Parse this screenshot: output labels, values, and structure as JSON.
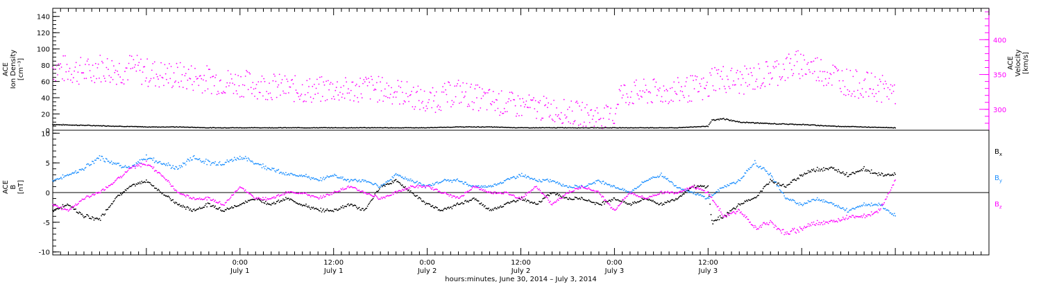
{
  "chart_data": [
    {
      "type": "scatter",
      "panel": "top",
      "left_axis": {
        "label_lines": [
          "ACE",
          "Ion Density",
          "[cm⁻³]"
        ],
        "ylim": [
          0,
          150
        ],
        "ticks": [
          0,
          20,
          40,
          60,
          80,
          100,
          120,
          140
        ],
        "tick_labels": [
          "0",
          "20",
          "40",
          "60",
          "80",
          "100",
          "120",
          "140"
        ]
      },
      "right_axis": {
        "label_lines": [
          "ACE",
          "Velocity",
          "[km/s]"
        ],
        "ylim": [
          270,
          445
        ],
        "ticks": [
          300,
          350,
          400
        ],
        "tick_labels": [
          "300",
          "350",
          "400"
        ],
        "color": "#ff00ff"
      },
      "series": [
        {
          "axis": "right",
          "color": "#ff00ff",
          "points": [
            [
              -24.0,
              360
            ],
            [
              -23,
              358
            ],
            [
              -21,
              356
            ],
            [
              -19,
              353
            ],
            [
              -18.5,
              362
            ],
            [
              -17,
              358
            ],
            [
              -15,
              356
            ],
            [
              -14,
              360
            ],
            [
              -12,
              353
            ],
            [
              -10,
              350
            ],
            [
              -8,
              348
            ],
            [
              -6,
              346
            ],
            [
              -4,
              343
            ],
            [
              -2,
              340
            ],
            [
              0,
              338
            ],
            [
              2,
              335
            ],
            [
              4,
              333
            ],
            [
              6,
              330
            ],
            [
              8,
              328
            ],
            [
              10,
              327
            ],
            [
              12,
              330
            ],
            [
              14,
              326
            ],
            [
              16,
              332
            ],
            [
              18,
              328
            ],
            [
              20,
              326
            ],
            [
              22,
              320
            ],
            [
              24,
              310
            ],
            [
              26,
              318
            ],
            [
              28,
              325
            ],
            [
              30,
              318
            ],
            [
              32,
              312
            ],
            [
              34,
              308
            ],
            [
              36,
              305
            ],
            [
              38,
              302
            ],
            [
              40,
              300
            ],
            [
              42,
              296
            ],
            [
              44,
              293
            ],
            [
              46,
              290
            ],
            [
              48,
              288
            ],
            [
              48.5,
              322
            ],
            [
              52,
              324
            ],
            [
              56,
              326
            ],
            [
              58,
              330
            ],
            [
              60,
              328
            ],
            [
              60.5,
              347
            ],
            [
              64,
              340
            ],
            [
              66,
              345
            ],
            [
              68,
              352
            ],
            [
              70,
              360
            ],
            [
              72,
              365
            ],
            [
              74,
              358
            ],
            [
              76,
              350
            ],
            [
              78,
              338
            ],
            [
              80,
              335
            ],
            [
              82,
              330
            ],
            [
              84,
              325
            ]
          ]
        },
        {
          "axis": "left",
          "color": "#000000",
          "points": [
            [
              -24.0,
              7
            ],
            [
              -20,
              6
            ],
            [
              -16,
              5
            ],
            [
              -12,
              4
            ],
            [
              -8,
              4
            ],
            [
              -4,
              3
            ],
            [
              0,
              3
            ],
            [
              4,
              3
            ],
            [
              8,
              3
            ],
            [
              12,
              3
            ],
            [
              16,
              3
            ],
            [
              20,
              3
            ],
            [
              24,
              3
            ],
            [
              28,
              4
            ],
            [
              32,
              4
            ],
            [
              36,
              3
            ],
            [
              40,
              3
            ],
            [
              44,
              3
            ],
            [
              48,
              3
            ],
            [
              52,
              3
            ],
            [
              56,
              3
            ],
            [
              60,
              5
            ],
            [
              60.5,
              12
            ],
            [
              62,
              14
            ],
            [
              64,
              10
            ],
            [
              66,
              9
            ],
            [
              68,
              8
            ],
            [
              72,
              7
            ],
            [
              76,
              5
            ],
            [
              80,
              4
            ],
            [
              84,
              3
            ]
          ]
        }
      ]
    },
    {
      "type": "scatter",
      "panel": "bottom",
      "left_axis": {
        "label_lines": [
          "ACE",
          "B",
          "[nT]"
        ],
        "ylim": [
          -10.5,
          10.5
        ],
        "ticks": [
          -10,
          -5,
          0,
          5,
          10
        ],
        "tick_labels": [
          "-10",
          "-5",
          "0",
          "5",
          "10"
        ]
      },
      "legend_position": "right",
      "series": [
        {
          "name": "B",
          "subscript": "x",
          "color": "#000000",
          "points": [
            [
              -24.0,
              -3
            ],
            [
              -22,
              -2
            ],
            [
              -20,
              -4
            ],
            [
              -18,
              -4.5
            ],
            [
              -16,
              -1
            ],
            [
              -14,
              1
            ],
            [
              -12,
              2
            ],
            [
              -10,
              0
            ],
            [
              -8,
              -2
            ],
            [
              -6,
              -3
            ],
            [
              -4,
              -2
            ],
            [
              -2,
              -3
            ],
            [
              0,
              -2
            ],
            [
              2,
              -1
            ],
            [
              4,
              -2
            ],
            [
              6,
              -1
            ],
            [
              8,
              -2
            ],
            [
              10,
              -3
            ],
            [
              12,
              -3
            ],
            [
              14,
              -2
            ],
            [
              16,
              -3
            ],
            [
              18,
              1
            ],
            [
              20,
              2
            ],
            [
              22,
              0
            ],
            [
              24,
              -2
            ],
            [
              26,
              -3
            ],
            [
              28,
              -2
            ],
            [
              30,
              -1
            ],
            [
              32,
              -3
            ],
            [
              34,
              -2
            ],
            [
              36,
              -1
            ],
            [
              38,
              -2
            ],
            [
              40,
              0
            ],
            [
              42,
              -1
            ],
            [
              44,
              -1
            ],
            [
              46,
              -2
            ],
            [
              48,
              -1
            ],
            [
              50,
              -2
            ],
            [
              52,
              -1
            ],
            [
              54,
              -2
            ],
            [
              56,
              -1
            ],
            [
              58,
              1
            ],
            [
              60,
              1
            ],
            [
              60.5,
              -5
            ],
            [
              62,
              -4
            ],
            [
              64,
              -2
            ],
            [
              66,
              -1
            ],
            [
              68,
              2
            ],
            [
              70,
              1
            ],
            [
              72,
              3
            ],
            [
              74,
              4
            ],
            [
              76,
              4
            ],
            [
              78,
              3
            ],
            [
              80,
              4
            ],
            [
              82,
              3
            ],
            [
              84,
              3
            ]
          ]
        },
        {
          "name": "B",
          "subscript": "y",
          "color": "#1e90ff",
          "points": [
            [
              -24.0,
              2
            ],
            [
              -22,
              3
            ],
            [
              -20,
              4
            ],
            [
              -18,
              6
            ],
            [
              -16,
              5
            ],
            [
              -14,
              4
            ],
            [
              -12,
              6
            ],
            [
              -10,
              5
            ],
            [
              -8,
              4
            ],
            [
              -6,
              6
            ],
            [
              -4,
              5
            ],
            [
              -2,
              5
            ],
            [
              0,
              6
            ],
            [
              2,
              5
            ],
            [
              4,
              4
            ],
            [
              6,
              3
            ],
            [
              8,
              3
            ],
            [
              10,
              2
            ],
            [
              12,
              3
            ],
            [
              14,
              2
            ],
            [
              16,
              2
            ],
            [
              18,
              1
            ],
            [
              20,
              3
            ],
            [
              22,
              2
            ],
            [
              24,
              1
            ],
            [
              26,
              2
            ],
            [
              28,
              2
            ],
            [
              30,
              1
            ],
            [
              32,
              1
            ],
            [
              34,
              2
            ],
            [
              36,
              3
            ],
            [
              38,
              2
            ],
            [
              40,
              2
            ],
            [
              42,
              1
            ],
            [
              44,
              1
            ],
            [
              46,
              2
            ],
            [
              48,
              1
            ],
            [
              50,
              0
            ],
            [
              52,
              2
            ],
            [
              54,
              3
            ],
            [
              56,
              1
            ],
            [
              58,
              0
            ],
            [
              60,
              -1
            ],
            [
              62,
              1
            ],
            [
              64,
              2
            ],
            [
              66,
              5
            ],
            [
              68,
              3
            ],
            [
              70,
              -1
            ],
            [
              72,
              -2
            ],
            [
              74,
              -1
            ],
            [
              76,
              -2
            ],
            [
              78,
              -3
            ],
            [
              80,
              -2
            ],
            [
              82,
              -2
            ],
            [
              84,
              -4
            ]
          ]
        },
        {
          "name": "B",
          "subscript": "z",
          "color": "#ff00ff",
          "points": [
            [
              -24.0,
              -2
            ],
            [
              -22,
              -3
            ],
            [
              -20,
              -1
            ],
            [
              -18,
              0
            ],
            [
              -16,
              2
            ],
            [
              -14,
              4
            ],
            [
              -12,
              5
            ],
            [
              -10,
              3
            ],
            [
              -8,
              0
            ],
            [
              -6,
              -1
            ],
            [
              -4,
              -1
            ],
            [
              -2,
              -2
            ],
            [
              0,
              1
            ],
            [
              2,
              -1
            ],
            [
              4,
              -1
            ],
            [
              6,
              0
            ],
            [
              8,
              0
            ],
            [
              10,
              -1
            ],
            [
              12,
              0
            ],
            [
              14,
              1
            ],
            [
              16,
              0
            ],
            [
              18,
              -1
            ],
            [
              20,
              0
            ],
            [
              22,
              1
            ],
            [
              24,
              1
            ],
            [
              26,
              0
            ],
            [
              28,
              -1
            ],
            [
              30,
              1
            ],
            [
              32,
              0
            ],
            [
              34,
              0
            ],
            [
              36,
              -1
            ],
            [
              38,
              1
            ],
            [
              40,
              -2
            ],
            [
              42,
              0
            ],
            [
              44,
              1
            ],
            [
              46,
              0
            ],
            [
              48,
              -3
            ],
            [
              50,
              0
            ],
            [
              52,
              -1
            ],
            [
              54,
              0
            ],
            [
              56,
              0
            ],
            [
              58,
              1
            ],
            [
              60,
              0
            ],
            [
              62,
              -4
            ],
            [
              64,
              -3
            ],
            [
              66,
              -6
            ],
            [
              68,
              -5
            ],
            [
              70,
              -7
            ],
            [
              72,
              -6
            ],
            [
              74,
              -5
            ],
            [
              76,
              -5
            ],
            [
              78,
              -4
            ],
            [
              80,
              -4
            ],
            [
              82,
              -3
            ],
            [
              84,
              2
            ]
          ]
        }
      ]
    }
  ],
  "x_axis": {
    "xlim": [
      -24,
      96
    ],
    "major_ticks": [
      0,
      24,
      48,
      72
    ],
    "tick_labels": [
      {
        "x": 0,
        "time": "0:00",
        "date": "July 1"
      },
      {
        "x": 12,
        "time": "12:00",
        "date": "July 1"
      },
      {
        "x": 24,
        "time": "0:00",
        "date": "July 2"
      },
      {
        "x": 36,
        "time": "12:00",
        "date": "July 2"
      },
      {
        "x": 48,
        "time": "0:00",
        "date": "July 3"
      },
      {
        "x": 60,
        "time": "12:00",
        "date": "July 3"
      }
    ],
    "xlabel": "hours:minutes, June 30, 2014 – July  3, 2014"
  }
}
